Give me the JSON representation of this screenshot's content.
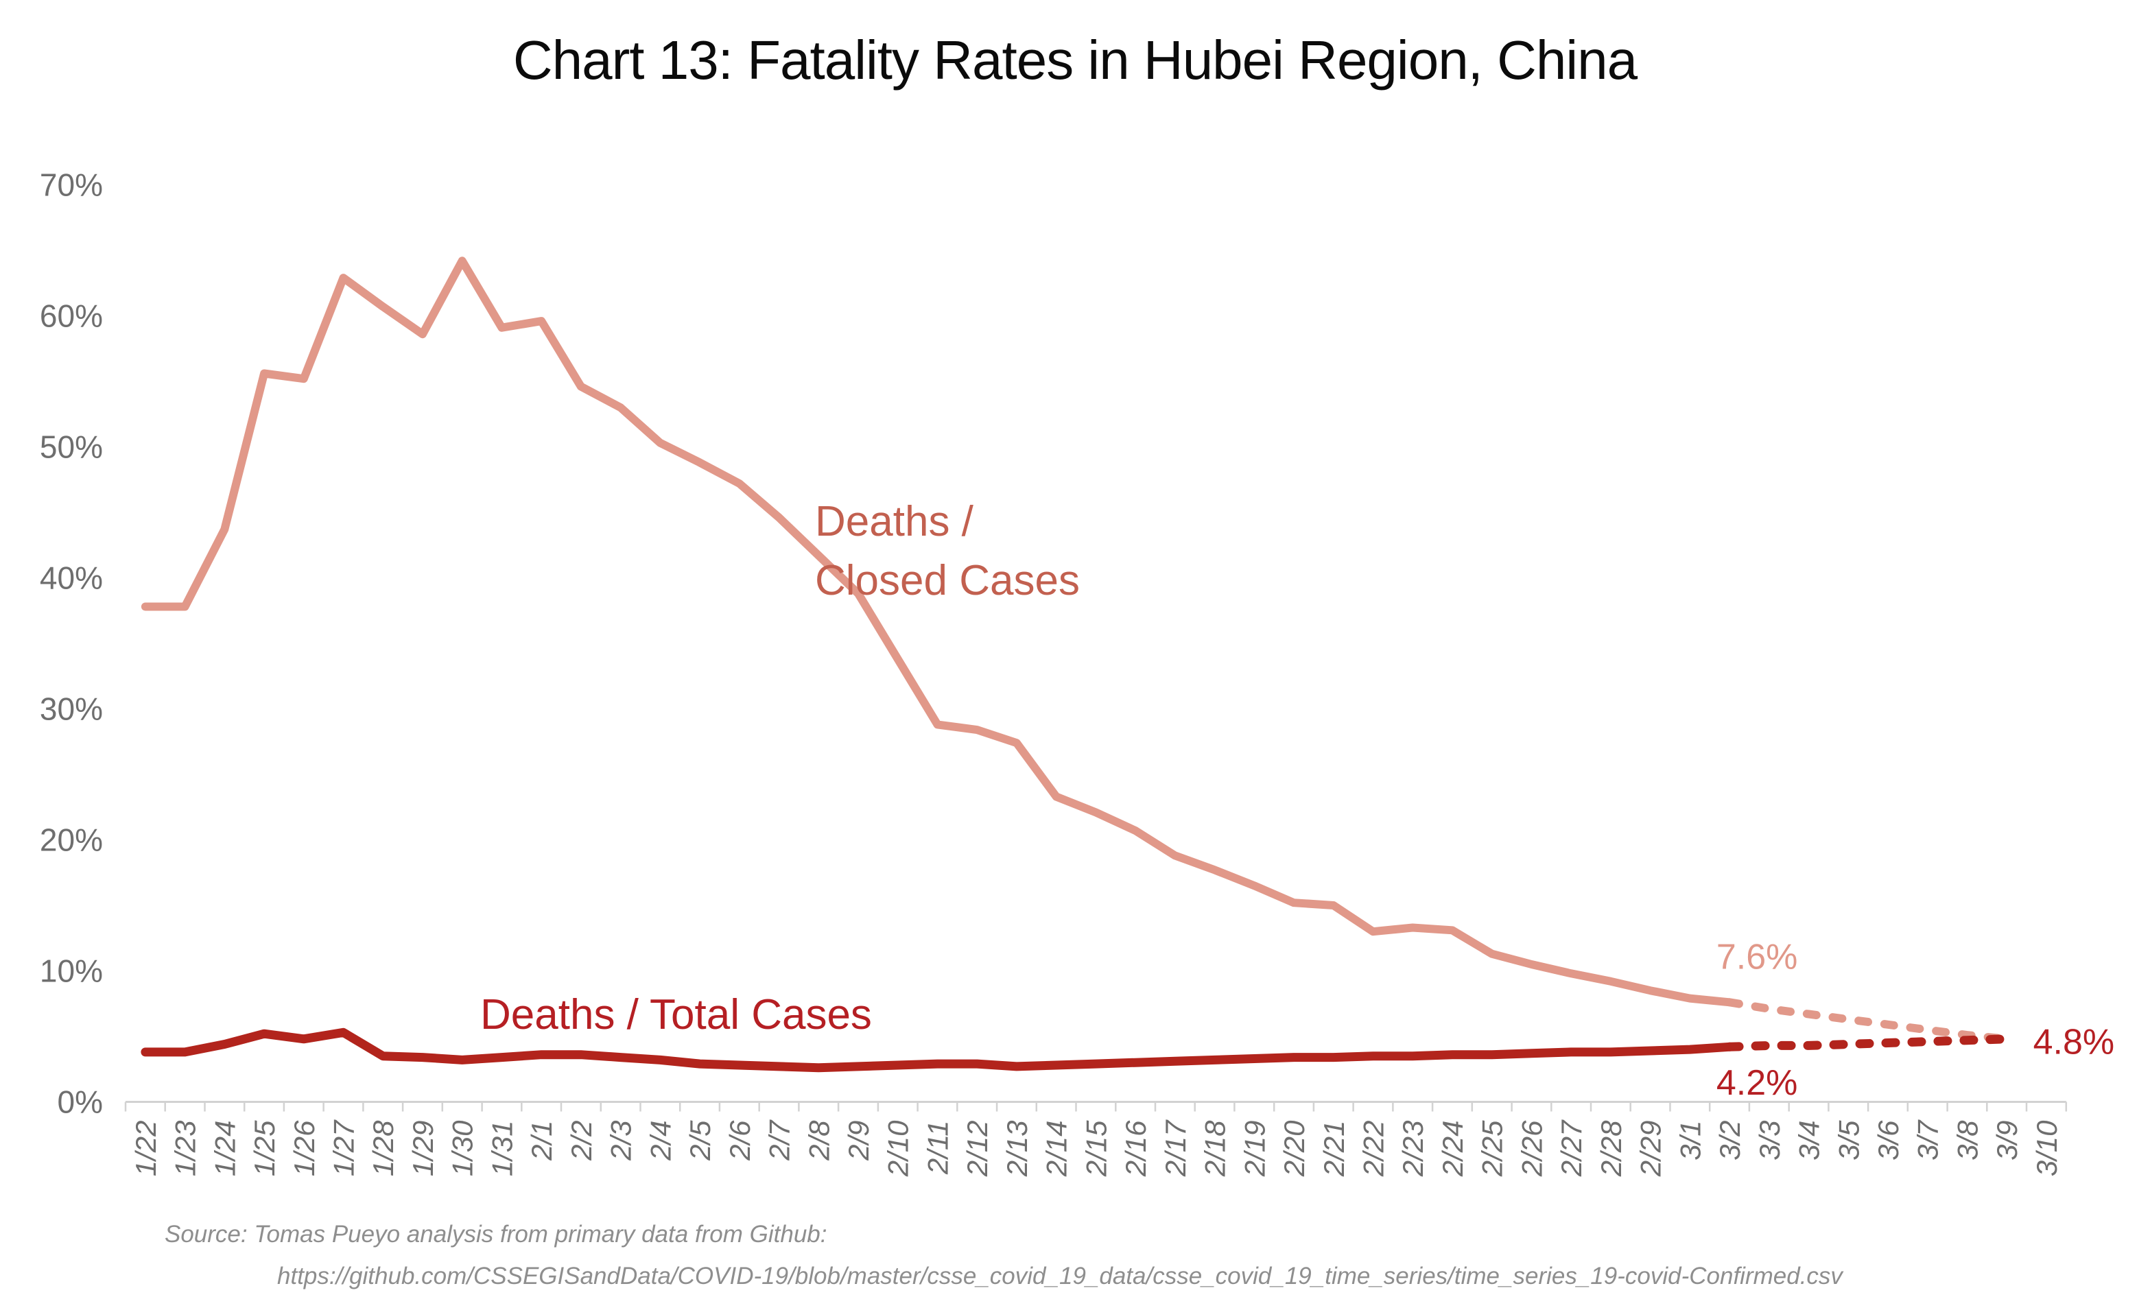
{
  "title": "Chart 13: Fatality Rates in Hubei Region, China",
  "source": {
    "line1": "Source: Tomas Pueyo analysis from primary data from Github:",
    "line2": "https://github.com/CSSEGISandData/COVID-19/blob/master/csse_covid_19_data/csse_covid_19_time_series/time_series_19-covid-Confirmed.csv"
  },
  "colors": {
    "closed_cases_line": "#E19889",
    "closed_cases_label": "#C2604F",
    "total_cases_line": "#B2241C",
    "total_cases_label": "#B51F23",
    "axis_text": "#6E6E6E",
    "axis_line": "#D2D2D2",
    "title_text": "#0B0B0B",
    "source_text": "#8E8E8E"
  },
  "chart_data": {
    "type": "line",
    "title": "Chart 13: Fatality Rates in Hubei Region, China",
    "xlabel": "",
    "ylabel": "",
    "ylim": [
      0,
      70
    ],
    "grid": false,
    "legend_position": "inline-labels",
    "y_tick_labels": [
      {
        "label": "70%",
        "value": 70
      },
      {
        "label": "60%",
        "value": 60
      },
      {
        "label": "50%",
        "value": 50
      },
      {
        "label": "40%",
        "value": 40
      },
      {
        "label": "30%",
        "value": 30
      },
      {
        "label": "20%",
        "value": 20
      },
      {
        "label": "10%",
        "value": 10
      },
      {
        "label": "0%",
        "value": 0
      }
    ],
    "categories": [
      "1/22",
      "1/23",
      "1/24",
      "1/25",
      "1/26",
      "1/27",
      "1/28",
      "1/29",
      "1/30",
      "1/31",
      "2/1",
      "2/2",
      "2/3",
      "2/4",
      "2/5",
      "2/6",
      "2/7",
      "2/8",
      "2/9",
      "2/10",
      "2/11",
      "2/12",
      "2/13",
      "2/14",
      "2/15",
      "2/16",
      "2/17",
      "2/18",
      "2/19",
      "2/20",
      "2/21",
      "2/22",
      "2/23",
      "2/24",
      "2/25",
      "2/26",
      "2/27",
      "2/28",
      "2/29",
      "3/1",
      "3/2",
      "3/3",
      "3/4",
      "3/5",
      "3/6",
      "3/7",
      "3/8",
      "3/9",
      "3/10"
    ],
    "series": [
      {
        "name": "Deaths / Closed Cases",
        "label_lines": [
          "Deaths /",
          "Closed Cases"
        ],
        "color": "#E19889",
        "solid_values": [
          37.8,
          37.8,
          43.7,
          55.6,
          55.2,
          62.9,
          60.7,
          58.6,
          64.2,
          59.1,
          59.6,
          54.6,
          53.0,
          50.3,
          48.8,
          47.2,
          44.6,
          41.7,
          38.8,
          33.8,
          28.8,
          28.4,
          27.4,
          23.3,
          22.1,
          20.7,
          18.8,
          17.7,
          16.5,
          15.2,
          15.0,
          13.0,
          13.3,
          13.1,
          11.3,
          10.5,
          9.8,
          9.2,
          8.5,
          7.9,
          7.6
        ],
        "solid_end_category": "3/2",
        "solid_end_value_label": "7.6%",
        "projected_values": [
          7.1,
          6.7,
          6.3,
          5.9,
          5.5,
          5.1,
          4.8
        ],
        "projection_style": "dashed",
        "projection_end_category": "3/9",
        "projection_end_value_label": "4.8%"
      },
      {
        "name": "Deaths / Total Cases",
        "label_lines": [
          "Deaths / Total Cases"
        ],
        "color": "#B2241C",
        "solid_values": [
          3.8,
          3.8,
          4.4,
          5.2,
          4.8,
          5.3,
          3.5,
          3.4,
          3.2,
          3.4,
          3.6,
          3.6,
          3.4,
          3.2,
          2.9,
          2.8,
          2.7,
          2.6,
          2.7,
          2.8,
          2.9,
          2.9,
          2.7,
          2.8,
          2.9,
          3.0,
          3.1,
          3.2,
          3.3,
          3.4,
          3.4,
          3.5,
          3.5,
          3.6,
          3.6,
          3.7,
          3.8,
          3.8,
          3.9,
          4.0,
          4.2
        ],
        "solid_end_category": "3/2",
        "solid_end_value_label": "4.2%",
        "projected_values": [
          4.3,
          4.3,
          4.4,
          4.5,
          4.6,
          4.7,
          4.8
        ],
        "projection_style": "dashed",
        "projection_end_category": "3/9",
        "projection_end_value_label": "4.8%"
      }
    ],
    "annotations": [
      {
        "text": "7.6%",
        "color": "#E19889",
        "at": {
          "category": "3/2",
          "value": 11.1
        }
      },
      {
        "text": "4.2%",
        "color": "#B51F23",
        "at": {
          "category": "3/2",
          "value": 1.5
        }
      },
      {
        "text": "4.8%",
        "color": "#B51F23",
        "at": {
          "category": "3/10",
          "value": 4.6
        }
      }
    ]
  }
}
